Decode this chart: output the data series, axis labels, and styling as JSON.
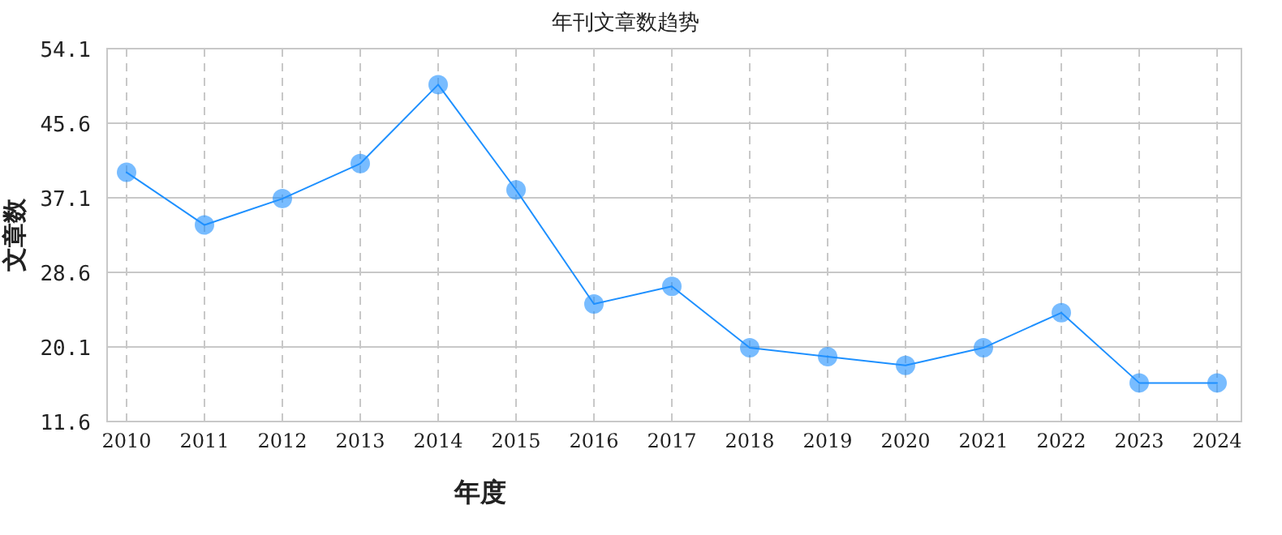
{
  "chart_data": {
    "type": "line",
    "title": "年刊文章数趋势",
    "xlabel": "年度",
    "ylabel": "文章数",
    "categories": [
      "2010",
      "2011",
      "2012",
      "2013",
      "2014",
      "2015",
      "2016",
      "2017",
      "2018",
      "2019",
      "2020",
      "2021",
      "2022",
      "2023",
      "2024"
    ],
    "series": [
      {
        "color": "#1e90ff",
        "values": [
          40,
          34,
          37,
          41,
          50,
          38,
          25,
          27,
          20,
          19,
          18,
          20,
          24,
          16,
          16
        ]
      }
    ],
    "ylim": [
      11.6,
      54.1
    ],
    "yticks": [
      11.6,
      20.1,
      28.6,
      37.1,
      45.6,
      54.1
    ],
    "grid": true,
    "marker": "circle",
    "line_style": "solid"
  }
}
